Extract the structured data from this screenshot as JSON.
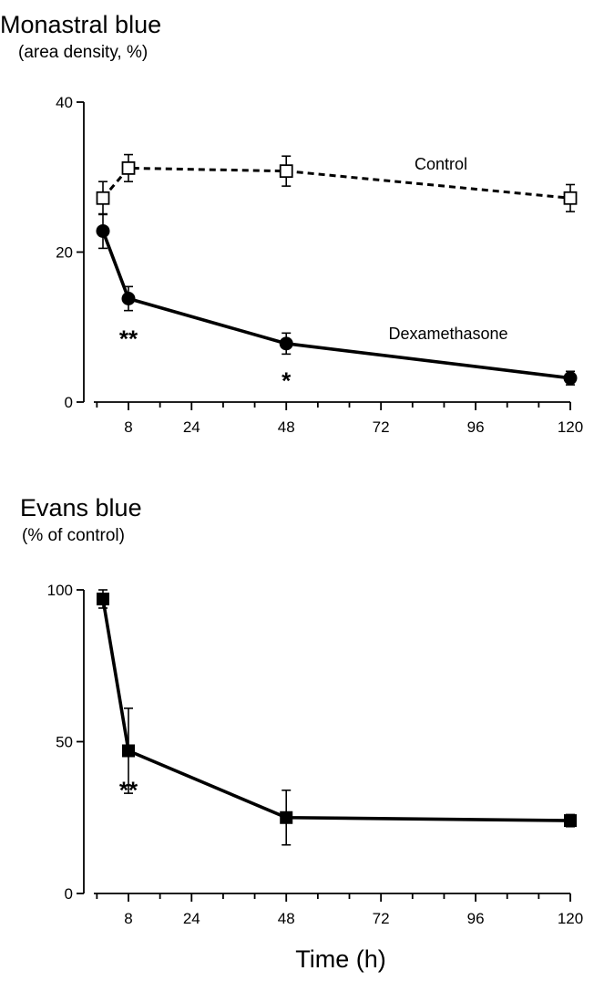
{
  "chart_data": [
    {
      "type": "line",
      "title": "Monastral blue",
      "ylabel": "(area density, %)",
      "xlabel": "",
      "ylim": [
        0,
        40
      ],
      "yticks": [
        0,
        20,
        40
      ],
      "xlim": [
        0,
        120
      ],
      "xticks": [
        8,
        24,
        48,
        72,
        96,
        120
      ],
      "grid": false,
      "series": [
        {
          "name": "Control",
          "style": "dashed",
          "marker": "open-square",
          "x": [
            1,
            8,
            48,
            120
          ],
          "y": [
            27.2,
            31.2,
            30.8,
            27.2
          ],
          "error": [
            2.2,
            1.8,
            2.0,
            1.8
          ]
        },
        {
          "name": "Dexamethasone",
          "style": "solid",
          "marker": "filled-circle",
          "x": [
            1,
            8,
            48,
            120
          ],
          "y": [
            22.8,
            13.8,
            7.8,
            3.2
          ],
          "error": [
            2.3,
            1.6,
            1.4,
            0.9
          ]
        }
      ],
      "annotations": [
        {
          "text": "**",
          "x": 8,
          "y": 8.8
        },
        {
          "text": "*",
          "x": 48,
          "y": 3.2
        }
      ]
    },
    {
      "type": "line",
      "title": "Evans blue",
      "ylabel": "(% of control)",
      "xlabel": "Time (h)",
      "ylim": [
        0,
        100
      ],
      "yticks": [
        0,
        50,
        100
      ],
      "xlim": [
        0,
        120
      ],
      "xticks": [
        8,
        24,
        48,
        72,
        96,
        120
      ],
      "grid": false,
      "series": [
        {
          "style": "solid",
          "marker": "filled-square",
          "x": [
            1,
            8,
            48,
            120
          ],
          "y": [
            97,
            47,
            25,
            24
          ],
          "error": [
            3,
            14,
            9,
            2
          ]
        }
      ],
      "annotations": [
        {
          "text": "**",
          "x": 8,
          "y": 35
        }
      ]
    }
  ]
}
